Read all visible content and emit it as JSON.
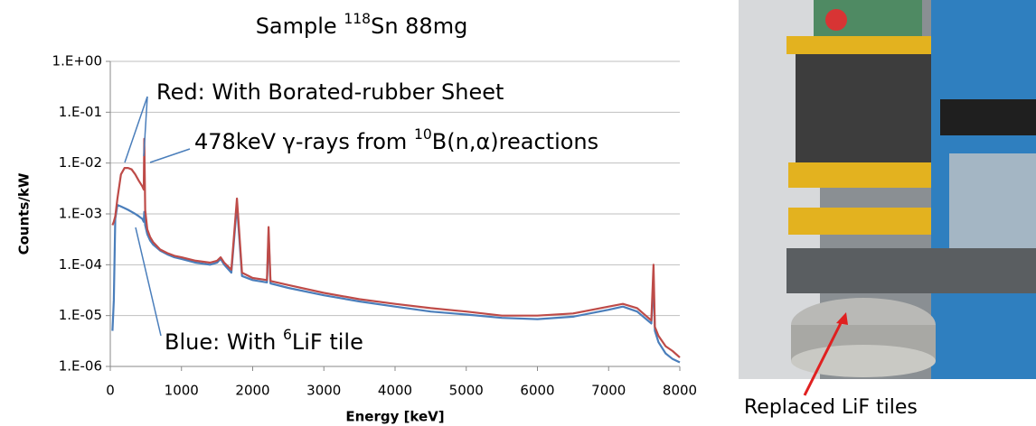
{
  "chart_data": {
    "type": "line",
    "title": [
      {
        "text": "Sample "
      },
      {
        "text": "118",
        "sup": true
      },
      {
        "text": "Sn 88mg"
      }
    ],
    "xlabel": "Energy [keV]",
    "ylabel": "Counts/kW",
    "annotations": [
      [
        {
          "text": "Red: With Borated-rubber Sheet"
        }
      ],
      [
        {
          "text": "478keV "
        },
        {
          "text": "γ"
        },
        {
          "text": "-rays from "
        },
        {
          "text": "10",
          "sup": true
        },
        {
          "text": "B(n,"
        },
        {
          "text": "α"
        },
        {
          "text": ")reactions"
        }
      ],
      [
        {
          "text": "Blue: With "
        },
        {
          "text": "6",
          "sup": true
        },
        {
          "text": "LiF tile"
        }
      ]
    ],
    "log_y": true,
    "grid": true,
    "xlim": [
      0,
      8000
    ],
    "xticks": [
      0,
      1000,
      2000,
      3000,
      4000,
      5000,
      6000,
      7000,
      8000
    ],
    "ylim": [
      1e-06,
      1
    ],
    "yticks": [
      {
        "value": 1,
        "label": "1.E+00"
      },
      {
        "value": 0.1,
        "label": "1.E-01"
      },
      {
        "value": 0.01,
        "label": "1.E-02"
      },
      {
        "value": 0.001,
        "label": "1.E-03"
      },
      {
        "value": 0.0001,
        "label": "1.E-04"
      },
      {
        "value": 1e-05,
        "label": "1.E-05"
      },
      {
        "value": 1e-06,
        "label": "1.E-06"
      }
    ],
    "x": [
      30,
      50,
      70,
      100,
      150,
      200,
      250,
      300,
      350,
      400,
      450,
      470,
      478,
      490,
      520,
      560,
      600,
      700,
      800,
      900,
      1000,
      1200,
      1400,
      1500,
      1550,
      1600,
      1700,
      1779,
      1850,
      2000,
      2200,
      2223,
      2250,
      2500,
      3000,
      3500,
      4000,
      4500,
      5000,
      5500,
      6000,
      6500,
      7000,
      7200,
      7400,
      7600,
      7631,
      7650,
      7700,
      7800,
      7900,
      8000
    ],
    "series": [
      {
        "color": "#4a7ebb",
        "values": [
          5e-06,
          2e-05,
          0.0008,
          0.0015,
          0.0014,
          0.0013,
          0.0012,
          0.0011,
          0.001,
          0.0009,
          0.0008,
          0.0007,
          0.0011,
          0.0006,
          0.0004,
          0.0003,
          0.00025,
          0.00019,
          0.00016,
          0.00014,
          0.00013,
          0.00011,
          0.0001,
          0.00011,
          0.00013,
          0.0001,
          7e-05,
          0.0015,
          6e-05,
          5e-05,
          4.5e-05,
          0.0004,
          4.3e-05,
          3.5e-05,
          2.5e-05,
          1.9e-05,
          1.5e-05,
          1.2e-05,
          1.05e-05,
          9e-06,
          8.5e-06,
          9.5e-06,
          1.3e-05,
          1.5e-05,
          1.2e-05,
          7e-06,
          5e-05,
          5e-06,
          3e-06,
          1.8e-06,
          1.4e-06,
          1.2e-06
        ]
      },
      {
        "color": "#be4b48",
        "values": [
          0.0006,
          0.0007,
          0.0009,
          0.002,
          0.006,
          0.008,
          0.008,
          0.0075,
          0.006,
          0.0045,
          0.0035,
          0.003,
          0.03,
          0.0012,
          0.0005,
          0.00035,
          0.00028,
          0.0002,
          0.00017,
          0.00015,
          0.00014,
          0.00012,
          0.00011,
          0.00012,
          0.00014,
          0.00011,
          8e-05,
          0.002,
          7e-05,
          5.5e-05,
          5e-05,
          0.00055,
          4.8e-05,
          4e-05,
          2.8e-05,
          2.1e-05,
          1.7e-05,
          1.4e-05,
          1.2e-05,
          1e-05,
          1e-05,
          1.1e-05,
          1.5e-05,
          1.7e-05,
          1.4e-05,
          8e-06,
          0.0001,
          6e-06,
          4e-06,
          2.5e-06,
          2e-06,
          1.5e-06
        ]
      }
    ]
  },
  "photo": {
    "caption": "Replaced LiF tiles"
  }
}
